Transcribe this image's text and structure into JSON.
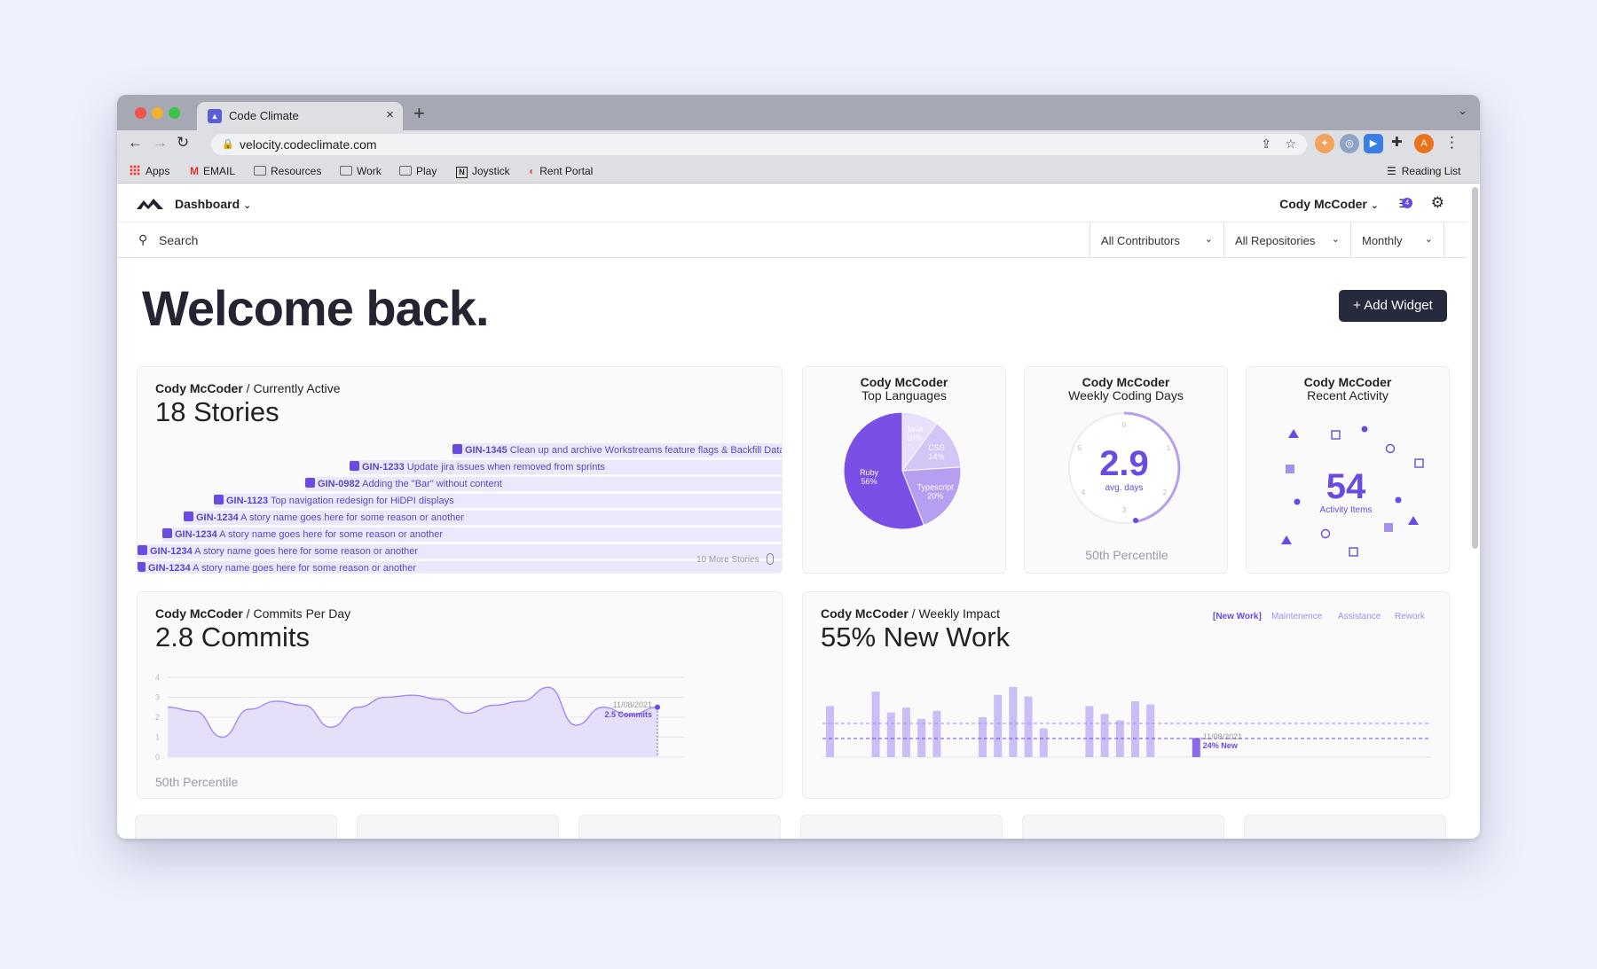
{
  "browser": {
    "tab_title": "Code Climate",
    "tab_close": "×",
    "new_tab": "+",
    "url": "velocity.codeclimate.com",
    "bookmarks": [
      "Apps",
      "EMAIL",
      "Resources",
      "Work",
      "Play",
      "Joystick",
      "Rent Portal"
    ],
    "reading_list": "Reading List",
    "profile_initial": "A"
  },
  "header": {
    "dashboard_label": "Dashboard",
    "user_label": "Cody McCoder",
    "notifications_count": "4"
  },
  "filters": {
    "search_label": "Search",
    "contributors": "All Contributors",
    "repositories": "All Repositories",
    "period": "Monthly"
  },
  "main": {
    "welcome": "Welcome back.",
    "add_widget": "+ Add Widget"
  },
  "stories_card": {
    "user": "Cody McCoder",
    "subtitle": " / Currently Active",
    "big": "18 Stories",
    "more": "10 More Stories",
    "items": [
      {
        "id": "GIN-1345",
        "text": " Clean up and archive Workstreams feature flags & Backfill Data"
      },
      {
        "id": "GIN-1233",
        "text": " Update jira issues when removed from sprints"
      },
      {
        "id": "GIN-0982",
        "text": " Adding the \"Bar\" without content"
      },
      {
        "id": "GIN-1123",
        "text": " Top navigation redesign for HiDPI displays"
      },
      {
        "id": "GIN-1234",
        "text": " A story name goes here for some reason or another"
      },
      {
        "id": "GIN-1234",
        "text": " A story name goes here for some reason or another"
      },
      {
        "id": "GIN-1234",
        "text": " A story name goes here for some reason or another"
      },
      {
        "id": "GIN-1234",
        "text": " A story name goes here for some reason or another"
      }
    ]
  },
  "languages_card": {
    "title": "Cody McCoder",
    "subtitle": "Top Languages",
    "slices": [
      {
        "name": "Ruby",
        "pct": "56%",
        "value": 56,
        "color": "#7a4fe6"
      },
      {
        "name": "Typescript",
        "pct": "20%",
        "value": 20,
        "color": "#b69ef0"
      },
      {
        "name": "CSS",
        "pct": "14%",
        "value": 14,
        "color": "#d3c6f6"
      },
      {
        "name": "Java",
        "pct": "10%",
        "value": 10,
        "color": "#e7dffb"
      }
    ]
  },
  "coding_days_card": {
    "title": "Cody McCoder",
    "subtitle": "Weekly Coding Days",
    "value": "2.9",
    "unit": "avg. days",
    "percentile": "50th Percentile",
    "dial_labels": [
      "0",
      "1",
      "2",
      "3",
      "4",
      "5"
    ]
  },
  "activity_card": {
    "title": "Cody McCoder",
    "subtitle": "Recent Activity",
    "value": "54",
    "label": "Activity Items"
  },
  "commits_card": {
    "user": "Cody McCoder",
    "subtitle": " / Commits Per Day",
    "big": "2.8 Commits",
    "percentile": "50th Percentile",
    "annotation_date": "11/08/2021",
    "annotation_value": "2.5 Commits",
    "y_ticks": [
      "0",
      "1",
      "2",
      "3",
      "4"
    ]
  },
  "impact_card": {
    "user": "Cody McCoder",
    "subtitle": " / Weekly Impact",
    "big": "55% New Work",
    "legend": [
      "[New Work]",
      "Maintenence",
      "Assistance",
      "Rework"
    ],
    "annotation_date": "11/08/2021",
    "annotation_value": "24% New"
  },
  "chart_data": [
    {
      "type": "pie",
      "title": "Top Languages",
      "categories": [
        "Ruby",
        "Typescript",
        "CSS",
        "Java"
      ],
      "values": [
        56,
        20,
        14,
        10
      ]
    },
    {
      "type": "area",
      "title": "Commits Per Day",
      "ylim": [
        0,
        4
      ],
      "series": [
        {
          "values": [
            2.5,
            2.3,
            1.0,
            2.4,
            2.8,
            2.6,
            1.5,
            2.5,
            3.0,
            3.1,
            2.9,
            2.2,
            2.6,
            2.8,
            3.5,
            1.6,
            2.5,
            2.1,
            2.5
          ]
        }
      ]
    },
    {
      "type": "bar",
      "title": "Weekly Impact",
      "values": [
        3.2,
        0,
        0,
        4.1,
        2.8,
        3.1,
        2.4,
        2.9,
        0,
        0,
        2.5,
        3.9,
        4.4,
        3.8,
        1.8,
        0,
        0,
        3.2,
        2.7,
        2.3,
        3.5,
        3.3,
        0,
        0,
        1.2
      ]
    }
  ]
}
